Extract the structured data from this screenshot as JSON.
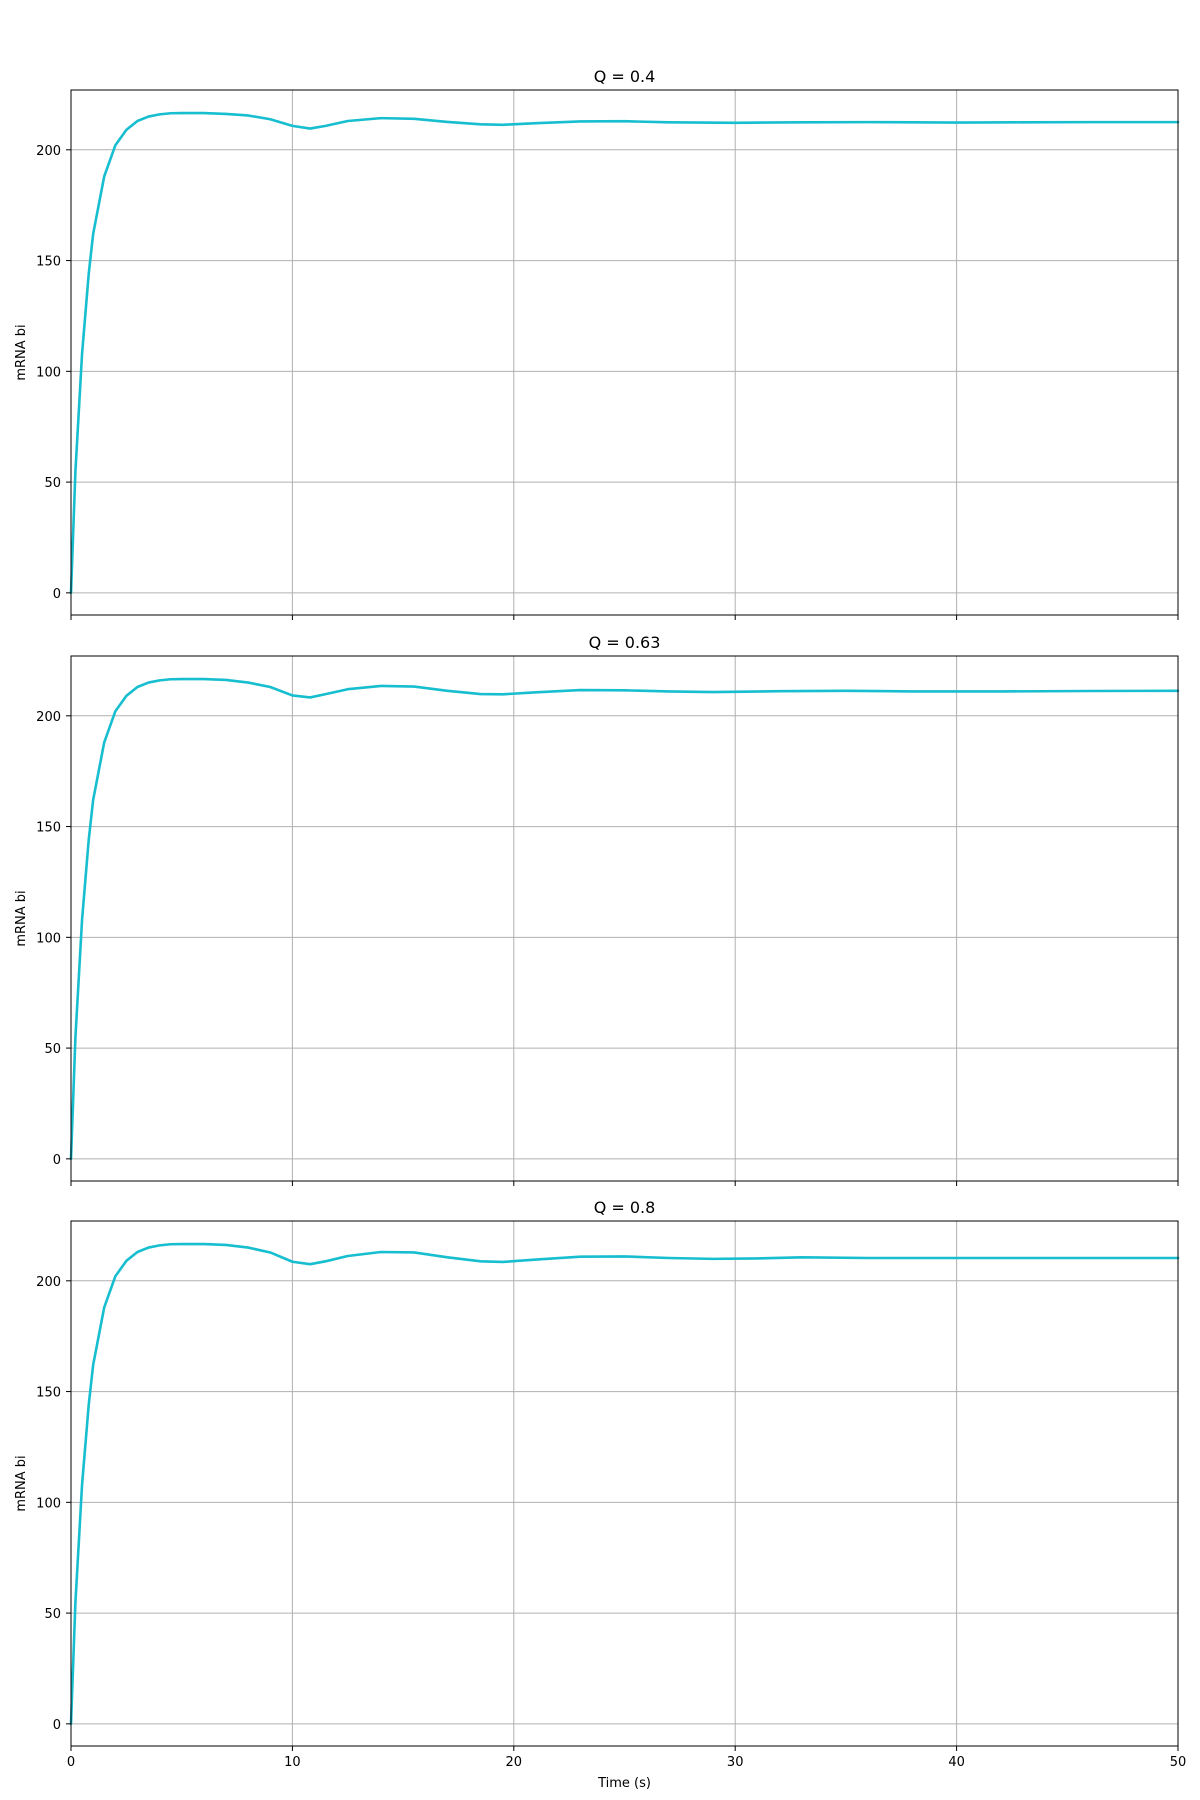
{
  "chart_data": [
    {
      "type": "line",
      "title": "Q = 0.4",
      "xlabel": "",
      "ylabel": "mRNA bi",
      "xlim": [
        0,
        50
      ],
      "ylim": [
        -10,
        227
      ],
      "xticks": [
        0,
        10,
        20,
        30,
        40,
        50
      ],
      "yticks": [
        0,
        50,
        100,
        150,
        200
      ],
      "show_x_tick_labels": false,
      "grid": true,
      "color": "#17becf",
      "series": [
        {
          "x": [
            0,
            0.2,
            0.5,
            0.8,
            1.0,
            1.5,
            2.0,
            2.5,
            3.0,
            3.5,
            4.0,
            4.5,
            5.0,
            6.0,
            7.0,
            8.0,
            9.0,
            10.0,
            10.8,
            11.5,
            12.5,
            14.0,
            15.5,
            17.0,
            18.5,
            19.5,
            21.0,
            23.0,
            25.0,
            27.0,
            30.0,
            33.0,
            36.0,
            40.0,
            43.0,
            46.0,
            50.0
          ],
          "y": [
            0,
            55,
            108,
            144,
            162,
            188,
            202,
            209,
            213,
            215,
            216,
            216.5,
            216.6,
            216.6,
            216.2,
            215.5,
            213.8,
            210.8,
            209.6,
            210.8,
            213.0,
            214.3,
            214.0,
            212.6,
            211.5,
            211.3,
            212.0,
            212.8,
            212.9,
            212.4,
            212.2,
            212.4,
            212.5,
            212.3,
            212.4,
            212.5,
            212.5
          ]
        }
      ]
    },
    {
      "type": "line",
      "title": "Q = 0.63",
      "xlabel": "",
      "ylabel": "mRNA bi",
      "xlim": [
        0,
        50
      ],
      "ylim": [
        -10,
        227
      ],
      "xticks": [
        0,
        10,
        20,
        30,
        40,
        50
      ],
      "yticks": [
        0,
        50,
        100,
        150,
        200
      ],
      "show_x_tick_labels": false,
      "grid": true,
      "color": "#17becf",
      "series": [
        {
          "x": [
            0,
            0.2,
            0.5,
            0.8,
            1.0,
            1.5,
            2.0,
            2.5,
            3.0,
            3.5,
            4.0,
            4.5,
            5.0,
            6.0,
            7.0,
            8.0,
            9.0,
            10.0,
            10.8,
            11.5,
            12.5,
            14.0,
            15.5,
            17.0,
            18.5,
            19.5,
            21.0,
            23.0,
            25.0,
            27.0,
            29.0,
            32.0,
            35.0,
            38.0,
            42.0,
            46.0,
            50.0
          ],
          "y": [
            0,
            55,
            108,
            144,
            162,
            188,
            202,
            209,
            213,
            215,
            216,
            216.5,
            216.6,
            216.6,
            216.2,
            215.0,
            213.0,
            209.2,
            208.3,
            209.8,
            212.0,
            213.5,
            213.2,
            211.3,
            209.8,
            209.7,
            210.6,
            211.6,
            211.5,
            211.0,
            210.7,
            211.1,
            211.3,
            211.0,
            211.0,
            211.2,
            211.3
          ]
        }
      ]
    },
    {
      "type": "line",
      "title": "Q = 0.8",
      "xlabel": "Time (s)",
      "ylabel": "mRNA bi",
      "xlim": [
        0,
        50
      ],
      "ylim": [
        -10,
        227
      ],
      "xticks": [
        0,
        10,
        20,
        30,
        40,
        50
      ],
      "yticks": [
        0,
        50,
        100,
        150,
        200
      ],
      "show_x_tick_labels": true,
      "grid": true,
      "color": "#17becf",
      "series": [
        {
          "x": [
            0,
            0.2,
            0.5,
            0.8,
            1.0,
            1.5,
            2.0,
            2.5,
            3.0,
            3.5,
            4.0,
            4.5,
            5.0,
            6.0,
            7.0,
            8.0,
            9.0,
            10.0,
            10.8,
            11.5,
            12.5,
            14.0,
            15.5,
            17.0,
            18.5,
            19.5,
            21.0,
            23.0,
            25.0,
            27.0,
            29.0,
            31.0,
            33.0,
            36.0,
            40.0,
            45.0,
            50.0
          ],
          "y": [
            0,
            55,
            108,
            144,
            162,
            188,
            202,
            209,
            213,
            215,
            216,
            216.5,
            216.6,
            216.6,
            216.2,
            215.0,
            212.8,
            208.6,
            207.5,
            208.8,
            211.2,
            213.0,
            212.8,
            210.6,
            208.8,
            208.5,
            209.6,
            210.9,
            211.0,
            210.3,
            209.9,
            210.1,
            210.6,
            210.3,
            210.3,
            210.3,
            210.3
          ]
        }
      ]
    }
  ]
}
